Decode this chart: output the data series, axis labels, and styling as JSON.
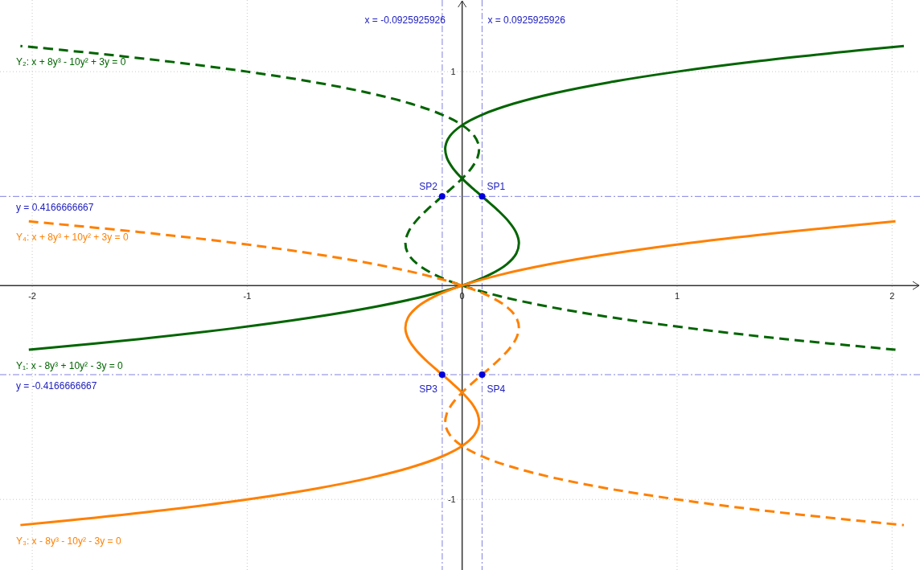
{
  "chart_data": {
    "type": "line",
    "xlim": [
      -2.15,
      2.13
    ],
    "ylim": [
      -1.33,
      1.335
    ],
    "xticks": [
      -2,
      -1,
      0,
      1,
      2
    ],
    "yticks": [
      -1,
      1
    ],
    "grid": true,
    "series": [
      {
        "name": "Y₁: x - 8y³ + 10y² - 3y = 0",
        "color": "#006400",
        "line_style": "solid",
        "x": [
          -2.016,
          -1.5,
          -1.064,
          -0.702,
          -0.408,
          -0.176,
          0,
          0.126,
          0.208,
          0.252,
          0.264,
          0.25,
          0.216,
          0.168,
          0.112,
          0.054,
          0,
          -0.044,
          -0.072,
          -0.078,
          -0.056,
          0,
          0.096,
          0.238,
          0.432,
          0.684,
          1,
          1.386,
          1.848,
          2.055
        ],
        "values": [
          -0.3,
          -0.25,
          -0.2,
          -0.15,
          -0.1,
          -0.05,
          0,
          0.05,
          0.1,
          0.15,
          0.2,
          0.25,
          0.3,
          0.35,
          0.4,
          0.45,
          0.5,
          0.55,
          0.6,
          0.65,
          0.7,
          0.75,
          0.8,
          0.85,
          0.9,
          0.95,
          1,
          1.05,
          1.1,
          1.12
        ]
      },
      {
        "name": "Y₂: x + 8y³ - 10y² + 3y = 0",
        "color": "#006400",
        "line_style": "dashed",
        "x": [
          2.016,
          1.5,
          1.064,
          0.702,
          0.408,
          0.176,
          0,
          -0.126,
          -0.208,
          -0.252,
          -0.264,
          -0.25,
          -0.216,
          -0.168,
          -0.112,
          -0.054,
          0,
          0.044,
          0.072,
          0.078,
          0.056,
          0,
          -0.096,
          -0.238,
          -0.432,
          -0.684,
          -1,
          -1.386,
          -1.848,
          -2.055
        ],
        "values": [
          -0.3,
          -0.25,
          -0.2,
          -0.15,
          -0.1,
          -0.05,
          0,
          0.05,
          0.1,
          0.15,
          0.2,
          0.25,
          0.3,
          0.35,
          0.4,
          0.45,
          0.5,
          0.55,
          0.6,
          0.65,
          0.7,
          0.75,
          0.8,
          0.85,
          0.9,
          0.95,
          1,
          1.05,
          1.1,
          1.12
        ]
      },
      {
        "name": "Y₃: x - 8y³ - 10y² - 3y = 0",
        "color": "#ff8000",
        "line_style": "solid",
        "x": [
          2.016,
          1.5,
          1.064,
          0.702,
          0.408,
          0.176,
          0,
          -0.126,
          -0.208,
          -0.252,
          -0.264,
          -0.25,
          -0.216,
          -0.168,
          -0.112,
          -0.054,
          0,
          0.044,
          0.072,
          0.078,
          0.056,
          0,
          -0.096,
          -0.238,
          -0.432,
          -0.684,
          -1,
          -1.386,
          -1.848,
          -2.055
        ],
        "values": [
          0.3,
          0.25,
          0.2,
          0.15,
          0.1,
          0.05,
          0,
          -0.05,
          -0.1,
          -0.15,
          -0.2,
          -0.25,
          -0.3,
          -0.35,
          -0.4,
          -0.45,
          -0.5,
          -0.55,
          -0.6,
          -0.65,
          -0.7,
          -0.75,
          -0.8,
          -0.85,
          -0.9,
          -0.95,
          -1,
          -1.05,
          -1.1,
          -1.12
        ]
      },
      {
        "name": "Y₄: x + 8y³ + 10y² + 3y = 0",
        "color": "#ff8000",
        "line_style": "dashed",
        "x": [
          -2.016,
          -1.5,
          -1.064,
          -0.702,
          -0.408,
          -0.176,
          0,
          0.126,
          0.208,
          0.252,
          0.264,
          0.25,
          0.216,
          0.168,
          0.112,
          0.054,
          0,
          -0.044,
          -0.072,
          -0.078,
          -0.056,
          0,
          0.096,
          0.238,
          0.432,
          0.684,
          1,
          1.386,
          1.848,
          2.055
        ],
        "values": [
          0.3,
          0.25,
          0.2,
          0.15,
          0.1,
          0.05,
          0,
          -0.05,
          -0.1,
          -0.15,
          -0.2,
          -0.25,
          -0.3,
          -0.35,
          -0.4,
          -0.45,
          -0.5,
          -0.55,
          -0.6,
          -0.65,
          -0.7,
          -0.75,
          -0.8,
          -0.85,
          -0.9,
          -0.95,
          -1,
          -1.05,
          -1.1,
          -1.12
        ]
      },
      {
        "type": "scatter",
        "color": "#0000dd",
        "marker": "circle",
        "x": [
          0.093,
          -0.093,
          -0.093,
          0.093
        ],
        "values": [
          0.417,
          0.417,
          -0.417,
          -0.417
        ],
        "value_labels": [
          "SP1",
          "SP2",
          "SP3",
          "SP4"
        ]
      }
    ],
    "ref_lines": [
      {
        "axis": "x",
        "value": -0.0925925926,
        "label": "x = -0.0925925926",
        "color": "#8080e0",
        "line_style": "dashed"
      },
      {
        "axis": "x",
        "value": 0.0925925926,
        "label": "x = 0.0925925926",
        "color": "#8080e0",
        "line_style": "dashed"
      },
      {
        "axis": "y",
        "value": 0.4166666667,
        "label": "y = 0.4166666667",
        "color": "#8080e0",
        "line_style": "dashed"
      },
      {
        "axis": "y",
        "value": -0.4166666667,
        "label": "y = -0.4166666667",
        "color": "#8080e0",
        "line_style": "dashed"
      }
    ]
  }
}
